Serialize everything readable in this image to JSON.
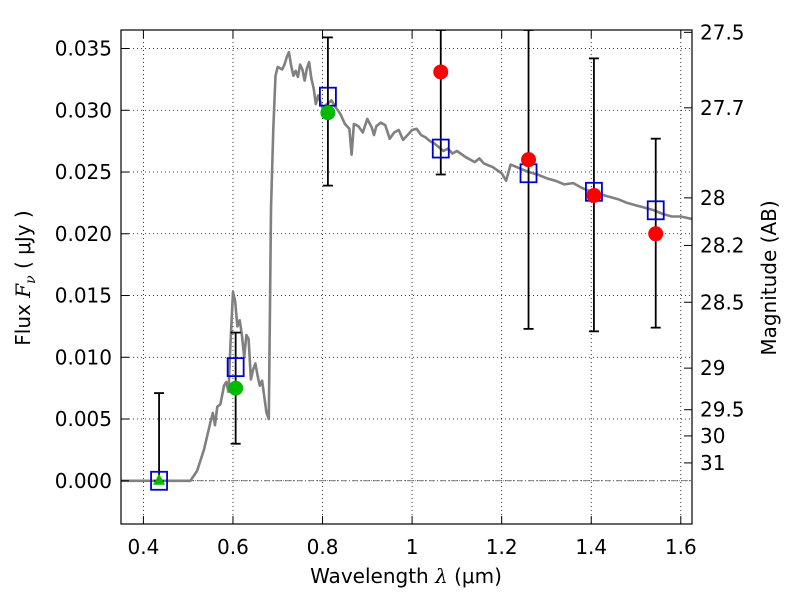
{
  "chart_data": {
    "type": "scatter",
    "xlabel": {
      "prefix": "Wavelength ",
      "symbol": "λ",
      "unit": " (μm)"
    },
    "ylabel": {
      "prefix": "Flux ",
      "symbol": "F",
      "sub": "ν",
      "unit": " ( μJy )"
    },
    "y2label": "Magnitude (AB)",
    "xlim": [
      0.35,
      1.625
    ],
    "ylim": [
      -0.0035,
      0.0365
    ],
    "grid": true,
    "x_ticks": [
      {
        "value": 0.4,
        "label": "0.4"
      },
      {
        "value": 0.6,
        "label": "0.6"
      },
      {
        "value": 0.8,
        "label": "0.8"
      },
      {
        "value": 1.0,
        "label": "1"
      },
      {
        "value": 1.2,
        "label": "1.2"
      },
      {
        "value": 1.4,
        "label": "1.4"
      },
      {
        "value": 1.6,
        "label": "1.6"
      }
    ],
    "y_ticks": [
      {
        "value": 0.0,
        "label": "0.000"
      },
      {
        "value": 0.005,
        "label": "0.005"
      },
      {
        "value": 0.01,
        "label": "0.010"
      },
      {
        "value": 0.015,
        "label": "0.015"
      },
      {
        "value": 0.02,
        "label": "0.020"
      },
      {
        "value": 0.025,
        "label": "0.025"
      },
      {
        "value": 0.03,
        "label": "0.030"
      },
      {
        "value": 0.035,
        "label": "0.035"
      }
    ],
    "mag_ticks": [
      {
        "label": "27.5",
        "mag": 27.5
      },
      {
        "label": "27.7",
        "mag": 27.7
      },
      {
        "label": "28",
        "mag": 28.0
      },
      {
        "label": "28.2",
        "mag": 28.2
      },
      {
        "label": "28.5",
        "mag": 28.5
      },
      {
        "label": "29",
        "mag": 29.0
      },
      {
        "label": "29.5",
        "mag": 29.5
      },
      {
        "label": "30",
        "mag": 30.0
      },
      {
        "label": "31",
        "mag": 31.0
      }
    ],
    "template_spectrum": {
      "color": "#808080",
      "points": [
        [
          0.35,
          0.0
        ],
        [
          0.505,
          0.0
        ],
        [
          0.52,
          0.0008
        ],
        [
          0.535,
          0.0025
        ],
        [
          0.55,
          0.0048
        ],
        [
          0.555,
          0.0055
        ],
        [
          0.56,
          0.0045
        ],
        [
          0.565,
          0.006
        ],
        [
          0.572,
          0.0062
        ],
        [
          0.58,
          0.0077
        ],
        [
          0.585,
          0.008
        ],
        [
          0.59,
          0.0072
        ],
        [
          0.595,
          0.0115
        ],
        [
          0.6,
          0.0153
        ],
        [
          0.605,
          0.0145
        ],
        [
          0.61,
          0.0125
        ],
        [
          0.615,
          0.013
        ],
        [
          0.62,
          0.0118
        ],
        [
          0.625,
          0.01
        ],
        [
          0.63,
          0.0118
        ],
        [
          0.635,
          0.0115
        ],
        [
          0.64,
          0.0082
        ],
        [
          0.645,
          0.009
        ],
        [
          0.65,
          0.0095
        ],
        [
          0.655,
          0.0085
        ],
        [
          0.66,
          0.0077
        ],
        [
          0.665,
          0.0081
        ],
        [
          0.67,
          0.0068
        ],
        [
          0.675,
          0.0055
        ],
        [
          0.68,
          0.005
        ],
        [
          0.685,
          0.022
        ],
        [
          0.69,
          0.0285
        ],
        [
          0.695,
          0.0328
        ],
        [
          0.7,
          0.0335
        ],
        [
          0.705,
          0.0334
        ],
        [
          0.71,
          0.0333
        ],
        [
          0.715,
          0.0337
        ],
        [
          0.72,
          0.0343
        ],
        [
          0.725,
          0.0347
        ],
        [
          0.73,
          0.0336
        ],
        [
          0.735,
          0.0328
        ],
        [
          0.74,
          0.0332
        ],
        [
          0.745,
          0.0327
        ],
        [
          0.75,
          0.0337
        ],
        [
          0.755,
          0.0333
        ],
        [
          0.76,
          0.0324
        ],
        [
          0.765,
          0.0334
        ],
        [
          0.77,
          0.0339
        ],
        [
          0.775,
          0.0326
        ],
        [
          0.78,
          0.0318
        ],
        [
          0.785,
          0.0305
        ],
        [
          0.79,
          0.0312
        ],
        [
          0.795,
          0.0307
        ],
        [
          0.8,
          0.0302
        ],
        [
          0.81,
          0.0305
        ],
        [
          0.82,
          0.0308
        ],
        [
          0.83,
          0.0302
        ],
        [
          0.84,
          0.0297
        ],
        [
          0.85,
          0.0289
        ],
        [
          0.86,
          0.0285
        ],
        [
          0.865,
          0.0264
        ],
        [
          0.87,
          0.0289
        ],
        [
          0.88,
          0.0287
        ],
        [
          0.89,
          0.0282
        ],
        [
          0.9,
          0.0293
        ],
        [
          0.91,
          0.0286
        ],
        [
          0.915,
          0.028
        ],
        [
          0.92,
          0.0287
        ],
        [
          0.93,
          0.029
        ],
        [
          0.94,
          0.0288
        ],
        [
          0.95,
          0.0277
        ],
        [
          0.96,
          0.0282
        ],
        [
          0.97,
          0.0284
        ],
        [
          0.98,
          0.0276
        ],
        [
          0.99,
          0.028
        ],
        [
          1.0,
          0.0284
        ],
        [
          1.01,
          0.0285
        ],
        [
          1.02,
          0.028
        ],
        [
          1.03,
          0.0278
        ],
        [
          1.04,
          0.0275
        ],
        [
          1.05,
          0.0273
        ],
        [
          1.06,
          0.027
        ],
        [
          1.07,
          0.0267
        ],
        [
          1.08,
          0.0269
        ],
        [
          1.09,
          0.0265
        ],
        [
          1.1,
          0.0267
        ],
        [
          1.12,
          0.0262
        ],
        [
          1.14,
          0.0258
        ],
        [
          1.15,
          0.0261
        ],
        [
          1.16,
          0.0257
        ],
        [
          1.18,
          0.0254
        ],
        [
          1.2,
          0.0249
        ],
        [
          1.21,
          0.0243
        ],
        [
          1.22,
          0.0256
        ],
        [
          1.24,
          0.0253
        ],
        [
          1.26,
          0.025
        ],
        [
          1.28,
          0.0248
        ],
        [
          1.3,
          0.0245
        ],
        [
          1.32,
          0.0243
        ],
        [
          1.34,
          0.024
        ],
        [
          1.36,
          0.0241
        ],
        [
          1.38,
          0.0237
        ],
        [
          1.4,
          0.0234
        ],
        [
          1.42,
          0.0232
        ],
        [
          1.44,
          0.023
        ],
        [
          1.46,
          0.0228
        ],
        [
          1.48,
          0.0225
        ],
        [
          1.5,
          0.0223
        ],
        [
          1.52,
          0.0221
        ],
        [
          1.54,
          0.0219
        ],
        [
          1.56,
          0.0216
        ],
        [
          1.58,
          0.0214
        ],
        [
          1.6,
          0.0214
        ],
        [
          1.625,
          0.0212
        ]
      ]
    },
    "model_fluxes": {
      "color": "#0000cc",
      "points": [
        [
          0.435,
          0.0
        ],
        [
          0.606,
          0.0092
        ],
        [
          0.812,
          0.0311
        ],
        [
          1.064,
          0.0269
        ],
        [
          1.26,
          0.0249
        ],
        [
          1.406,
          0.0234
        ],
        [
          1.544,
          0.0219
        ]
      ]
    },
    "error_bars": {
      "color": "#000000",
      "items": [
        {
          "x": 0.435,
          "low": 0.0,
          "high": 0.0071
        },
        {
          "x": 0.606,
          "low": 0.003,
          "high": 0.012
        },
        {
          "x": 0.812,
          "low": 0.0239,
          "high": 0.0359
        },
        {
          "x": 1.064,
          "low": 0.0248,
          "high": 0.0365
        },
        {
          "x": 1.26,
          "low": 0.0123,
          "high": 0.0365
        },
        {
          "x": 1.406,
          "low": 0.0121,
          "high": 0.0342
        },
        {
          "x": 1.544,
          "low": 0.0124,
          "high": 0.0277
        }
      ]
    },
    "green_points": {
      "color": "#00bb00",
      "points": [
        [
          0.606,
          0.0075
        ],
        [
          0.812,
          0.0298
        ]
      ]
    },
    "green_triangles": {
      "color": "#00bb00",
      "points": [
        [
          0.435,
          0.0
        ]
      ]
    },
    "red_points": {
      "color": "#ff0000",
      "points": [
        [
          1.064,
          0.0331
        ],
        [
          1.26,
          0.026
        ],
        [
          1.406,
          0.0231
        ],
        [
          1.544,
          0.02
        ]
      ]
    }
  }
}
